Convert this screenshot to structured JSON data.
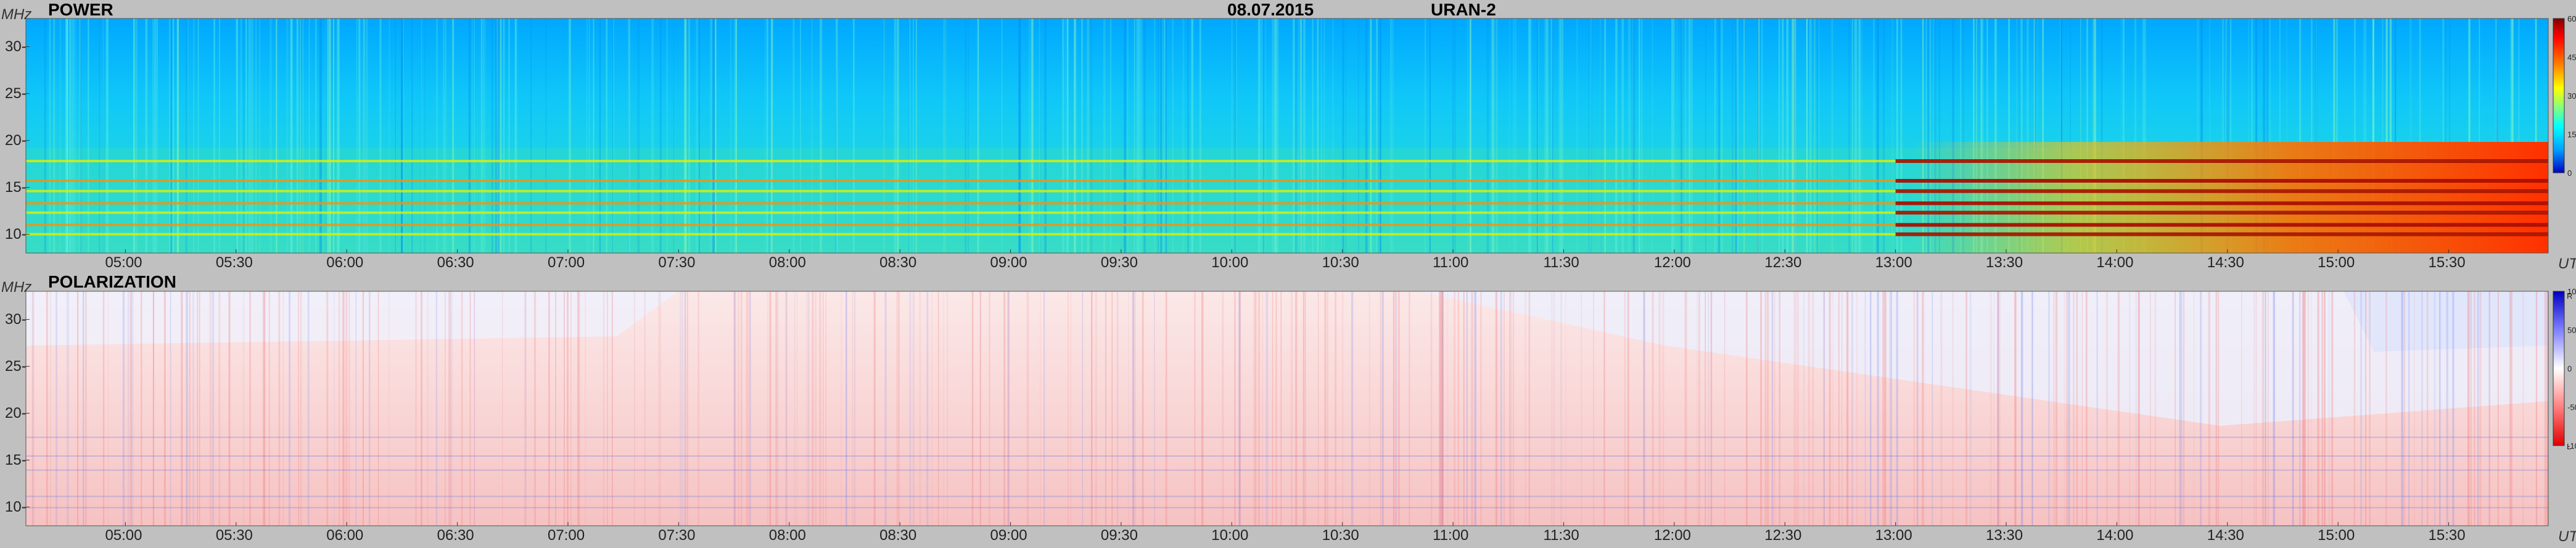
{
  "header": {
    "title": "POWER",
    "date": "08.07.2015",
    "instrument": "URAN-2"
  },
  "chart_data": [
    {
      "type": "heatmap",
      "title": "POWER",
      "ylabel": "MHz",
      "xlabel": "UT",
      "ylim": [
        8,
        33
      ],
      "y_ticks": [
        "10-",
        "15-",
        "20-",
        "25-",
        "30-"
      ],
      "y_tick_values": [
        10,
        15,
        20,
        25,
        30
      ],
      "x_ticks": [
        "05:00",
        "05:30",
        "06:00",
        "06:30",
        "07:00",
        "07:30",
        "08:00",
        "08:30",
        "09:00",
        "09:30",
        "10:00",
        "10:30",
        "11:00",
        "11:30",
        "12:00",
        "12:30",
        "13:00",
        "13:30",
        "14:00",
        "14:30",
        "15:00",
        "15:30"
      ],
      "x_tick_hours": [
        5.0,
        5.5,
        6.0,
        6.5,
        7.0,
        7.5,
        8.0,
        8.5,
        9.0,
        9.5,
        10.0,
        10.5,
        11.0,
        11.5,
        12.0,
        12.5,
        13.0,
        13.5,
        14.0,
        14.5,
        15.0,
        15.5
      ],
      "xlim_hours": [
        4.55,
        15.95
      ],
      "colorbar": {
        "ticks": [
          "60",
          "45",
          "30",
          "15",
          "0"
        ],
        "tick_values": [
          60,
          45,
          30,
          15,
          0
        ],
        "colors": [
          "#000080",
          "#0000ff",
          "#00b0ff",
          "#00ffff",
          "#80ff80",
          "#ffff00",
          "#ff8000",
          "#ff0000",
          "#800000"
        ]
      },
      "interference_bands_mhz": [
        10,
        11,
        12.3,
        13.3,
        14.6,
        15.7,
        17.8
      ],
      "strong_region_hours": [
        13.0,
        15.95
      ]
    },
    {
      "type": "heatmap",
      "title": "POLARIZATION",
      "ylabel": "MHz",
      "xlabel": "UT",
      "ylim": [
        8,
        33
      ],
      "y_ticks": [
        "10-",
        "15-",
        "20-",
        "25-",
        "30-"
      ],
      "y_tick_values": [
        10,
        15,
        20,
        25,
        30
      ],
      "x_ticks": [
        "05:00",
        "05:30",
        "06:00",
        "06:30",
        "07:00",
        "07:30",
        "08:00",
        "08:30",
        "09:00",
        "09:30",
        "10:00",
        "10:30",
        "11:00",
        "11:30",
        "12:00",
        "12:30",
        "13:00",
        "13:30",
        "14:00",
        "14:30",
        "15:00",
        "15:30"
      ],
      "colorbar": {
        "top_label": "R",
        "bottom_label": "L",
        "ticks": [
          "100",
          "50",
          "0",
          "-50",
          "-100"
        ],
        "tick_values": [
          100,
          50,
          0,
          -50,
          -100
        ],
        "colors": [
          "#0000c0",
          "#8080ff",
          "#ffffff",
          "#ff8080",
          "#e00000"
        ]
      }
    }
  ]
}
